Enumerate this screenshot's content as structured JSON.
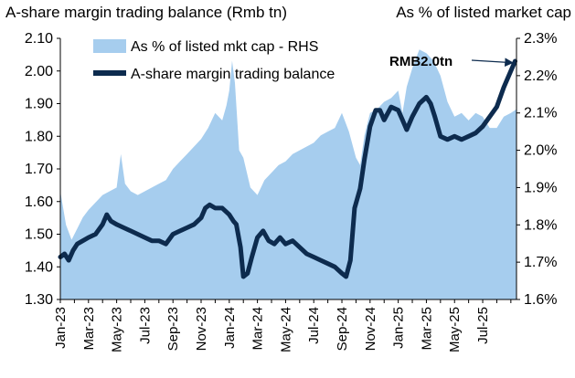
{
  "chart_data": {
    "type": "line-area",
    "title_left": "A-share margin trading balance (Rmb tn)",
    "title_right": "As % of listed market cap",
    "colors": {
      "line": "#0d2b4e",
      "area": "#a6cdee"
    },
    "left_axis": {
      "min": 1.3,
      "max": 2.1,
      "ticks": [
        "2.10",
        "2.00",
        "1.90",
        "1.80",
        "1.70",
        "1.60",
        "1.50",
        "1.40",
        "1.30"
      ]
    },
    "right_axis": {
      "min": 1.6,
      "max": 2.3,
      "ticks": [
        "2.3%",
        "2.2%",
        "2.1%",
        "2.0%",
        "1.9%",
        "1.8%",
        "1.7%",
        "1.6%"
      ]
    },
    "x_range": [
      0,
      32.4
    ],
    "x_tick_labels": [
      {
        "label": "Jan-23",
        "x": 0
      },
      {
        "label": "Mar-23",
        "x": 2
      },
      {
        "label": "May-23",
        "x": 4
      },
      {
        "label": "Jul-23",
        "x": 6
      },
      {
        "label": "Sep-23",
        "x": 8
      },
      {
        "label": "Nov-23",
        "x": 10
      },
      {
        "label": "Jan-24",
        "x": 12
      },
      {
        "label": "Mar-24",
        "x": 14
      },
      {
        "label": "May-24",
        "x": 16
      },
      {
        "label": "Jul-24",
        "x": 18
      },
      {
        "label": "Sep-24",
        "x": 20
      },
      {
        "label": "Nov-24",
        "x": 22
      },
      {
        "label": "Jan-25",
        "x": 24
      },
      {
        "label": "Mar-25",
        "x": 26
      },
      {
        "label": "May-25",
        "x": 28
      },
      {
        "label": "Jul-25",
        "x": 30
      }
    ],
    "series": [
      {
        "name": "As % of listed mkt cap - RHS",
        "axis": "right",
        "kind": "area",
        "points": [
          [
            0,
            1.89
          ],
          [
            0.4,
            1.8
          ],
          [
            0.8,
            1.76
          ],
          [
            1.2,
            1.79
          ],
          [
            1.6,
            1.82
          ],
          [
            2,
            1.84
          ],
          [
            2.5,
            1.86
          ],
          [
            3,
            1.88
          ],
          [
            3.5,
            1.89
          ],
          [
            4,
            1.9
          ],
          [
            4.3,
            1.99
          ],
          [
            4.6,
            1.91
          ],
          [
            5,
            1.89
          ],
          [
            5.5,
            1.88
          ],
          [
            6,
            1.89
          ],
          [
            6.5,
            1.9
          ],
          [
            7,
            1.91
          ],
          [
            7.5,
            1.92
          ],
          [
            8,
            1.95
          ],
          [
            8.5,
            1.97
          ],
          [
            9,
            1.99
          ],
          [
            9.5,
            2.01
          ],
          [
            10,
            2.03
          ],
          [
            10.5,
            2.06
          ],
          [
            11,
            2.1
          ],
          [
            11.5,
            2.08
          ],
          [
            11.8,
            2.12
          ],
          [
            12,
            2.16
          ],
          [
            12.2,
            2.24
          ],
          [
            12.4,
            2.18
          ],
          [
            12.7,
            2.0
          ],
          [
            13,
            1.98
          ],
          [
            13.5,
            1.9
          ],
          [
            14,
            1.88
          ],
          [
            14.5,
            1.92
          ],
          [
            15,
            1.94
          ],
          [
            15.5,
            1.96
          ],
          [
            16,
            1.97
          ],
          [
            16.5,
            1.99
          ],
          [
            17,
            2.0
          ],
          [
            17.5,
            2.01
          ],
          [
            18,
            2.02
          ],
          [
            18.5,
            2.04
          ],
          [
            19,
            2.05
          ],
          [
            19.5,
            2.06
          ],
          [
            20,
            2.1
          ],
          [
            20.5,
            2.05
          ],
          [
            21,
            1.98
          ],
          [
            21.3,
            1.96
          ],
          [
            21.6,
            2.04
          ],
          [
            22,
            2.1
          ],
          [
            22.5,
            2.11
          ],
          [
            23,
            2.13
          ],
          [
            23.5,
            2.14
          ],
          [
            24,
            2.16
          ],
          [
            24.3,
            2.1
          ],
          [
            24.6,
            2.17
          ],
          [
            25,
            2.22
          ],
          [
            25.5,
            2.27
          ],
          [
            26,
            2.26
          ],
          [
            26.5,
            2.24
          ],
          [
            27,
            2.2
          ],
          [
            27.5,
            2.13
          ],
          [
            28,
            2.09
          ],
          [
            28.5,
            2.1
          ],
          [
            29,
            2.08
          ],
          [
            29.5,
            2.1
          ],
          [
            30,
            2.09
          ],
          [
            30.5,
            2.06
          ],
          [
            31,
            2.06
          ],
          [
            31.5,
            2.09
          ],
          [
            32,
            2.1
          ],
          [
            32.4,
            2.11
          ]
        ]
      },
      {
        "name": "A-share margin trading balance",
        "axis": "left",
        "kind": "line",
        "points": [
          [
            0,
            1.43
          ],
          [
            0.3,
            1.44
          ],
          [
            0.6,
            1.42
          ],
          [
            0.9,
            1.45
          ],
          [
            1.2,
            1.47
          ],
          [
            1.6,
            1.48
          ],
          [
            2,
            1.49
          ],
          [
            2.5,
            1.5
          ],
          [
            3,
            1.53
          ],
          [
            3.3,
            1.56
          ],
          [
            3.6,
            1.54
          ],
          [
            4,
            1.53
          ],
          [
            4.5,
            1.52
          ],
          [
            5,
            1.51
          ],
          [
            5.5,
            1.5
          ],
          [
            6,
            1.49
          ],
          [
            6.5,
            1.48
          ],
          [
            7,
            1.48
          ],
          [
            7.5,
            1.47
          ],
          [
            8,
            1.5
          ],
          [
            8.5,
            1.51
          ],
          [
            9,
            1.52
          ],
          [
            9.5,
            1.53
          ],
          [
            10,
            1.55
          ],
          [
            10.3,
            1.58
          ],
          [
            10.6,
            1.59
          ],
          [
            11,
            1.58
          ],
          [
            11.5,
            1.58
          ],
          [
            12,
            1.56
          ],
          [
            12.3,
            1.54
          ],
          [
            12.5,
            1.53
          ],
          [
            12.8,
            1.46
          ],
          [
            13,
            1.37
          ],
          [
            13.3,
            1.38
          ],
          [
            13.6,
            1.43
          ],
          [
            14,
            1.49
          ],
          [
            14.4,
            1.51
          ],
          [
            14.8,
            1.48
          ],
          [
            15.2,
            1.47
          ],
          [
            15.6,
            1.49
          ],
          [
            16,
            1.47
          ],
          [
            16.5,
            1.48
          ],
          [
            17,
            1.46
          ],
          [
            17.5,
            1.44
          ],
          [
            18,
            1.43
          ],
          [
            18.5,
            1.42
          ],
          [
            19,
            1.41
          ],
          [
            19.5,
            1.4
          ],
          [
            20,
            1.38
          ],
          [
            20.3,
            1.37
          ],
          [
            20.6,
            1.42
          ],
          [
            20.9,
            1.58
          ],
          [
            21.3,
            1.64
          ],
          [
            21.6,
            1.73
          ],
          [
            22,
            1.83
          ],
          [
            22.4,
            1.88
          ],
          [
            22.7,
            1.88
          ],
          [
            23,
            1.85
          ],
          [
            23.5,
            1.89
          ],
          [
            24,
            1.88
          ],
          [
            24.3,
            1.85
          ],
          [
            24.6,
            1.82
          ],
          [
            25,
            1.86
          ],
          [
            25.5,
            1.9
          ],
          [
            26,
            1.92
          ],
          [
            26.3,
            1.9
          ],
          [
            26.6,
            1.86
          ],
          [
            27,
            1.8
          ],
          [
            27.5,
            1.79
          ],
          [
            28,
            1.8
          ],
          [
            28.5,
            1.79
          ],
          [
            29,
            1.8
          ],
          [
            29.5,
            1.81
          ],
          [
            30,
            1.83
          ],
          [
            30.5,
            1.86
          ],
          [
            31,
            1.89
          ],
          [
            31.5,
            1.95
          ],
          [
            32,
            2.0
          ],
          [
            32.3,
            2.03
          ]
        ]
      }
    ],
    "annotation": {
      "text": "RMB2.0tn",
      "x": 32.3,
      "y": 2.02
    }
  }
}
